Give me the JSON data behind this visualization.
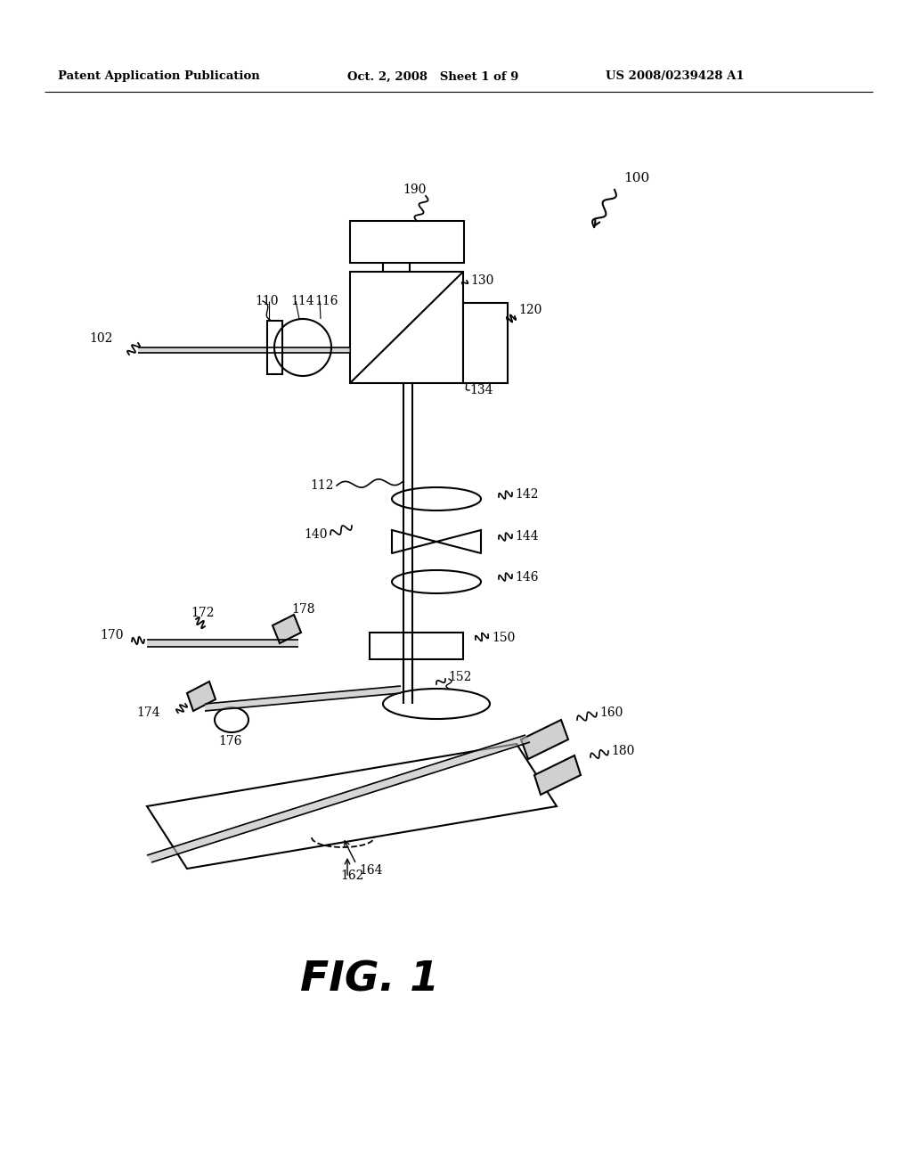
{
  "bg_color": "#ffffff",
  "header_left": "Patent Application Publication",
  "header_mid": "Oct. 2, 2008   Sheet 1 of 9",
  "header_right": "US 2008/0239428 A1",
  "fig_label": "FIG. 1",
  "ref_100": "100",
  "ref_102": "102",
  "ref_110": "110",
  "ref_112": "112",
  "ref_114": "114",
  "ref_116": "116",
  "ref_120": "120",
  "ref_130": "130",
  "ref_134": "134",
  "ref_140": "140",
  "ref_142": "142",
  "ref_144": "144",
  "ref_146": "146",
  "ref_150": "150",
  "ref_152": "152",
  "ref_160": "160",
  "ref_162": "162",
  "ref_164": "164",
  "ref_170": "170",
  "ref_172": "172",
  "ref_174": "174",
  "ref_176": "176",
  "ref_178": "178",
  "ref_180": "180",
  "ref_190": "190",
  "lw": 1.5,
  "font_size_header": 9.5,
  "font_size_label": 10,
  "font_size_fig": 34
}
